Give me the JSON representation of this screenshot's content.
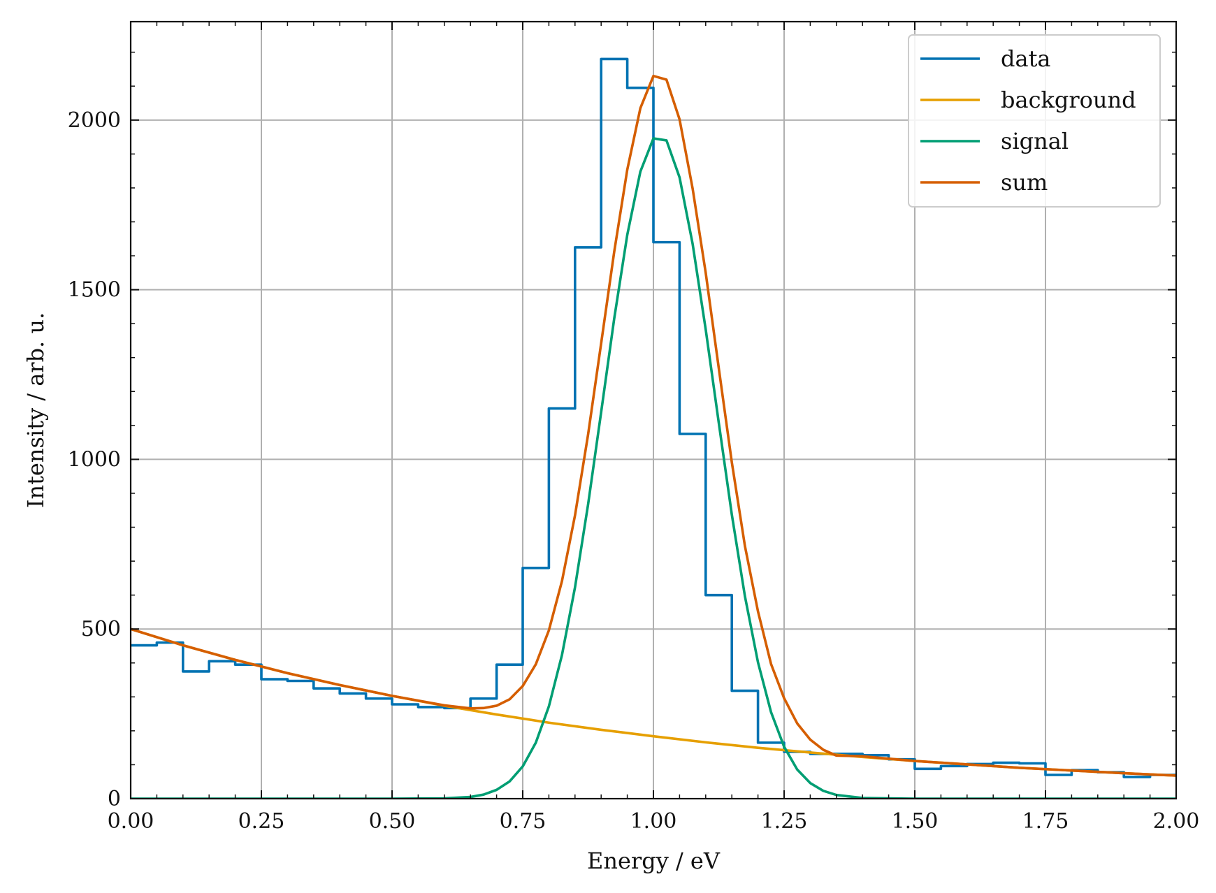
{
  "chart_data": {
    "type": "line",
    "title": "",
    "xlabel": "Energy  / eV",
    "ylabel": "Intensity  / arb. u.",
    "xlim": [
      0,
      2
    ],
    "ylim": [
      0,
      2290
    ],
    "grid": true,
    "legend_position": "top-right",
    "x_ticks": [
      "0.00",
      "0.25",
      "0.50",
      "0.75",
      "1.00",
      "1.25",
      "1.50",
      "1.75",
      "2.00"
    ],
    "y_ticks": [
      "0",
      "500",
      "1000",
      "1500",
      "2000"
    ],
    "series": [
      {
        "name": "data",
        "kind": "step",
        "color": "#0072B2",
        "bin_edges": [
          0.0,
          0.05,
          0.1,
          0.15,
          0.2,
          0.25,
          0.3,
          0.35,
          0.4,
          0.45,
          0.5,
          0.55,
          0.6,
          0.65,
          0.7,
          0.75,
          0.8,
          0.85,
          0.9,
          0.95,
          1.0,
          1.05,
          1.1,
          1.15,
          1.2,
          1.25,
          1.3,
          1.35,
          1.4,
          1.45,
          1.5,
          1.55,
          1.6,
          1.65,
          1.7,
          1.75,
          1.8,
          1.85,
          1.9,
          1.95,
          2.0
        ],
        "values": [
          452,
          460,
          375,
          405,
          395,
          352,
          347,
          325,
          310,
          295,
          278,
          270,
          267,
          295,
          395,
          680,
          1150,
          1625,
          2180,
          2095,
          1640,
          1075,
          600,
          318,
          165,
          138,
          132,
          132,
          128,
          116,
          88,
          96,
          102,
          106,
          104,
          70,
          84,
          78,
          64,
          70
        ]
      },
      {
        "name": "background",
        "kind": "line",
        "color": "#E69F00",
        "x": [
          0.0,
          0.1,
          0.2,
          0.3,
          0.4,
          0.5,
          0.6,
          0.7,
          0.8,
          0.9,
          1.0,
          1.1,
          1.2,
          1.3,
          1.4,
          1.5,
          1.6,
          1.7,
          1.8,
          1.9,
          2.0
        ],
        "values": [
          500,
          452,
          409,
          370,
          335,
          303,
          274,
          248,
          224,
          203,
          184,
          166,
          150,
          136,
          123,
          111,
          101,
          91,
          83,
          75,
          68
        ]
      },
      {
        "name": "signal",
        "kind": "line",
        "color": "#009E73",
        "x": [
          0.0,
          0.5,
          0.6,
          0.65,
          0.675,
          0.7,
          0.725,
          0.75,
          0.775,
          0.8,
          0.825,
          0.85,
          0.875,
          0.9,
          0.925,
          0.95,
          0.975,
          1.0,
          1.025,
          1.05,
          1.075,
          1.1,
          1.125,
          1.15,
          1.175,
          1.2,
          1.225,
          1.25,
          1.275,
          1.3,
          1.325,
          1.35,
          1.4,
          1.5,
          2.0
        ],
        "values": [
          0,
          0,
          1,
          5,
          12,
          26,
          51,
          95,
          165,
          272,
          423,
          623,
          867,
          1139,
          1415,
          1662,
          1848,
          1946,
          1940,
          1831,
          1635,
          1383,
          1108,
          837,
          597,
          402,
          255,
          153,
          86,
          46,
          23,
          11,
          2,
          0,
          0
        ]
      },
      {
        "name": "sum",
        "kind": "line",
        "color": "#D55E00",
        "x": [
          0.0,
          0.1,
          0.2,
          0.3,
          0.4,
          0.5,
          0.6,
          0.65,
          0.675,
          0.7,
          0.725,
          0.75,
          0.775,
          0.8,
          0.825,
          0.85,
          0.875,
          0.9,
          0.925,
          0.95,
          0.975,
          1.0,
          1.025,
          1.05,
          1.075,
          1.1,
          1.125,
          1.15,
          1.175,
          1.2,
          1.225,
          1.25,
          1.275,
          1.3,
          1.325,
          1.35,
          1.4,
          1.5,
          1.6,
          1.7,
          1.8,
          1.9,
          2.0
        ],
        "values": [
          500,
          452,
          409,
          370,
          335,
          303,
          275,
          266,
          267,
          274,
          293,
          332,
          396,
          496,
          641,
          835,
          1073,
          1342,
          1612,
          1854,
          2035,
          2130,
          2119,
          2002,
          1798,
          1550,
          1269,
          991,
          745,
          552,
          397,
          296,
          222,
          174,
          144,
          127,
          125,
          111,
          101,
          91,
          83,
          75,
          68
        ]
      }
    ]
  }
}
